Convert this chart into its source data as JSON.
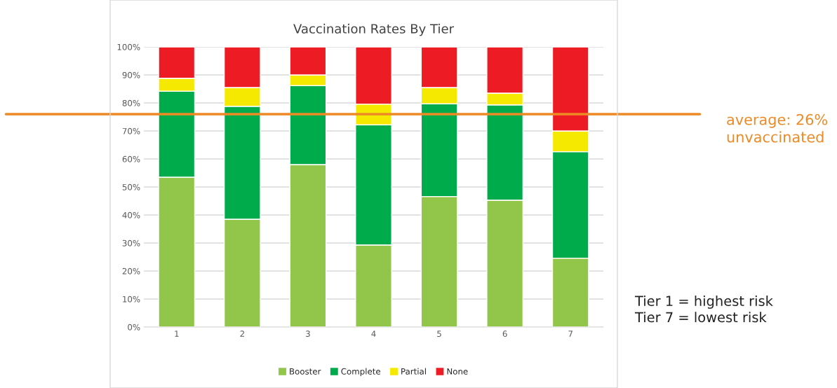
{
  "chart_data": {
    "type": "bar",
    "title": "Vaccination Rates By Tier",
    "stacked": true,
    "categories": [
      "1",
      "2",
      "3",
      "4",
      "5",
      "6",
      "7"
    ],
    "series": [
      {
        "name": "Booster",
        "color": "#92c64a",
        "values": [
          53.5,
          38.5,
          58,
          29.3,
          46.6,
          45.3,
          24.6
        ]
      },
      {
        "name": "Complete",
        "color": "#00ab4b",
        "values": [
          30.7,
          40.3,
          28.2,
          42.9,
          33.1,
          34,
          38
        ]
      },
      {
        "name": "Partial",
        "color": "#f5e900",
        "values": [
          4.6,
          6.7,
          3.8,
          7.4,
          5.8,
          4.2,
          7.4
        ]
      },
      {
        "name": "None",
        "color": "#ed1c24",
        "values": [
          11.2,
          14.5,
          10,
          20.4,
          14.5,
          16.5,
          30
        ]
      }
    ],
    "ylim": [
      0,
      100
    ],
    "yticks": [
      {
        "value": 0,
        "label": "0%"
      },
      {
        "value": 10,
        "label": "10%"
      },
      {
        "value": 20,
        "label": "20%"
      },
      {
        "value": 30,
        "label": "30%"
      },
      {
        "value": 40,
        "label": "40%"
      },
      {
        "value": 50,
        "label": "50%"
      },
      {
        "value": 60,
        "label": "60%"
      },
      {
        "value": 70,
        "label": "70%"
      },
      {
        "value": 80,
        "label": "80%"
      },
      {
        "value": 90,
        "label": "90%"
      },
      {
        "value": 100,
        "label": "100%"
      }
    ],
    "grid": "y",
    "legend": "bottom",
    "ref_lines": [
      {
        "axis": "y",
        "value": 76,
        "color": "#ed8a26"
      }
    ],
    "annotations": [
      "average: 26%\nunvaccinated",
      "Tier 1 = highest risk\nTier 7 = lowest risk"
    ]
  }
}
